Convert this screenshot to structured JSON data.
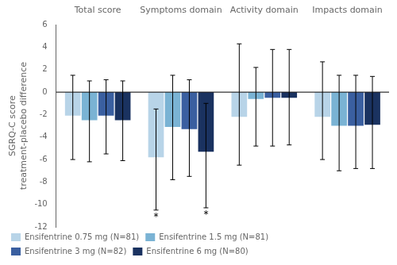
{
  "chart_data": {
    "type": "bar",
    "categories": [
      "Total score",
      "Symptoms domain",
      "Activity domain",
      "Impacts domain"
    ],
    "series": [
      {
        "name": "Ensifentrine 0.75 mg (N=81)",
        "color": "#b8d4e8",
        "values": [
          -2.1,
          -5.8,
          -2.2,
          -2.2
        ],
        "ci_lower": [
          -6.0,
          -10.5,
          -6.5,
          -6.0
        ],
        "ci_upper": [
          1.5,
          -1.5,
          4.3,
          2.7
        ]
      },
      {
        "name": "Ensifentrine 1.5 mg (N=81)",
        "color": "#7ab3d4",
        "values": [
          -2.5,
          -3.1,
          -0.6,
          -3.0
        ],
        "ci_lower": [
          -6.2,
          -7.8,
          -4.8,
          -7.0
        ],
        "ci_upper": [
          1.0,
          1.5,
          2.2,
          1.5
        ]
      },
      {
        "name": "Ensifentrine 3 mg (N=82)",
        "color": "#3a5fa0",
        "values": [
          -2.1,
          -3.3,
          -0.5,
          -3.0
        ],
        "ci_lower": [
          -5.5,
          -7.5,
          -4.8,
          -6.8
        ],
        "ci_upper": [
          1.1,
          1.1,
          3.8,
          1.5
        ]
      },
      {
        "name": "Ensifentrine 6 mg (N=80)",
        "color": "#1a3260",
        "values": [
          -2.5,
          -5.3,
          -0.5,
          -2.9
        ],
        "ci_lower": [
          -6.1,
          -10.3,
          -4.7,
          -6.8
        ],
        "ci_upper": [
          1.0,
          -1.0,
          3.8,
          1.4
        ]
      }
    ],
    "ylabel": "SGRQ-C score\ntreatment-placebo difference",
    "ylim": [
      -12,
      6
    ],
    "yticks": [
      -12,
      -10,
      -8,
      -6,
      -4,
      -2,
      0,
      2,
      4,
      6
    ],
    "hlines": [
      0
    ],
    "annotations": [
      {
        "text": "*",
        "category": "Symptoms domain",
        "series": "Ensifentrine 0.75 mg (N=81)"
      },
      {
        "text": "*",
        "category": "Symptoms domain",
        "series": "Ensifentrine 6 mg (N=80)"
      }
    ],
    "grid": false,
    "legend": "lower left"
  }
}
